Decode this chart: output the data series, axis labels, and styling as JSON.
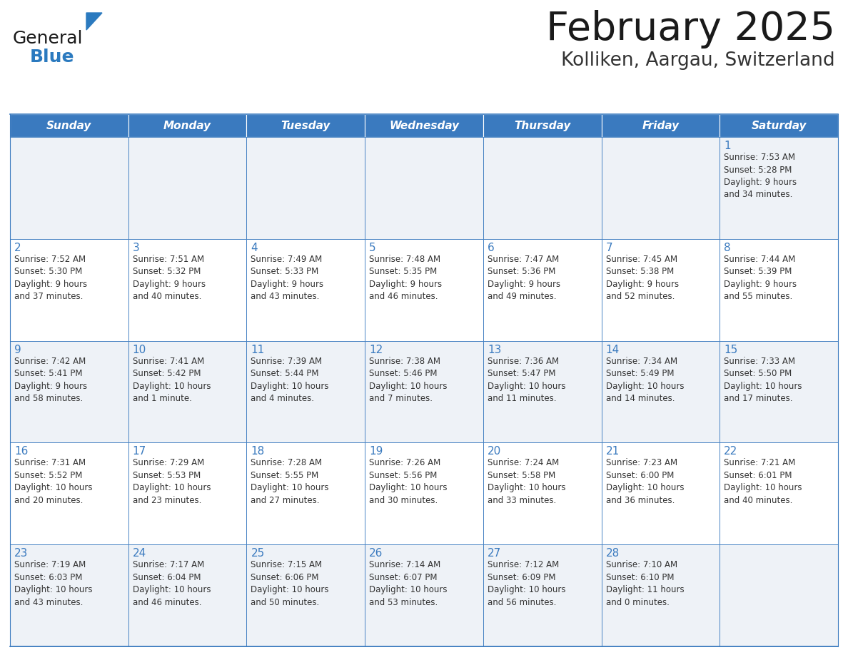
{
  "title": "February 2025",
  "subtitle": "Kolliken, Aargau, Switzerland",
  "header_bg": "#3a7abf",
  "header_text": "#ffffff",
  "cell_bg_even": "#eef2f7",
  "cell_bg_odd": "#ffffff",
  "border_color": "#3a7abf",
  "day_headers": [
    "Sunday",
    "Monday",
    "Tuesday",
    "Wednesday",
    "Thursday",
    "Friday",
    "Saturday"
  ],
  "title_color": "#1a1a1a",
  "subtitle_color": "#333333",
  "date_color": "#3a7abf",
  "text_color": "#333333",
  "logo_general_color": "#1a1a1a",
  "logo_blue_color": "#2b7abf",
  "weeks": [
    [
      {
        "day": null,
        "info": ""
      },
      {
        "day": null,
        "info": ""
      },
      {
        "day": null,
        "info": ""
      },
      {
        "day": null,
        "info": ""
      },
      {
        "day": null,
        "info": ""
      },
      {
        "day": null,
        "info": ""
      },
      {
        "day": 1,
        "info": "Sunrise: 7:53 AM\nSunset: 5:28 PM\nDaylight: 9 hours\nand 34 minutes."
      }
    ],
    [
      {
        "day": 2,
        "info": "Sunrise: 7:52 AM\nSunset: 5:30 PM\nDaylight: 9 hours\nand 37 minutes."
      },
      {
        "day": 3,
        "info": "Sunrise: 7:51 AM\nSunset: 5:32 PM\nDaylight: 9 hours\nand 40 minutes."
      },
      {
        "day": 4,
        "info": "Sunrise: 7:49 AM\nSunset: 5:33 PM\nDaylight: 9 hours\nand 43 minutes."
      },
      {
        "day": 5,
        "info": "Sunrise: 7:48 AM\nSunset: 5:35 PM\nDaylight: 9 hours\nand 46 minutes."
      },
      {
        "day": 6,
        "info": "Sunrise: 7:47 AM\nSunset: 5:36 PM\nDaylight: 9 hours\nand 49 minutes."
      },
      {
        "day": 7,
        "info": "Sunrise: 7:45 AM\nSunset: 5:38 PM\nDaylight: 9 hours\nand 52 minutes."
      },
      {
        "day": 8,
        "info": "Sunrise: 7:44 AM\nSunset: 5:39 PM\nDaylight: 9 hours\nand 55 minutes."
      }
    ],
    [
      {
        "day": 9,
        "info": "Sunrise: 7:42 AM\nSunset: 5:41 PM\nDaylight: 9 hours\nand 58 minutes."
      },
      {
        "day": 10,
        "info": "Sunrise: 7:41 AM\nSunset: 5:42 PM\nDaylight: 10 hours\nand 1 minute."
      },
      {
        "day": 11,
        "info": "Sunrise: 7:39 AM\nSunset: 5:44 PM\nDaylight: 10 hours\nand 4 minutes."
      },
      {
        "day": 12,
        "info": "Sunrise: 7:38 AM\nSunset: 5:46 PM\nDaylight: 10 hours\nand 7 minutes."
      },
      {
        "day": 13,
        "info": "Sunrise: 7:36 AM\nSunset: 5:47 PM\nDaylight: 10 hours\nand 11 minutes."
      },
      {
        "day": 14,
        "info": "Sunrise: 7:34 AM\nSunset: 5:49 PM\nDaylight: 10 hours\nand 14 minutes."
      },
      {
        "day": 15,
        "info": "Sunrise: 7:33 AM\nSunset: 5:50 PM\nDaylight: 10 hours\nand 17 minutes."
      }
    ],
    [
      {
        "day": 16,
        "info": "Sunrise: 7:31 AM\nSunset: 5:52 PM\nDaylight: 10 hours\nand 20 minutes."
      },
      {
        "day": 17,
        "info": "Sunrise: 7:29 AM\nSunset: 5:53 PM\nDaylight: 10 hours\nand 23 minutes."
      },
      {
        "day": 18,
        "info": "Sunrise: 7:28 AM\nSunset: 5:55 PM\nDaylight: 10 hours\nand 27 minutes."
      },
      {
        "day": 19,
        "info": "Sunrise: 7:26 AM\nSunset: 5:56 PM\nDaylight: 10 hours\nand 30 minutes."
      },
      {
        "day": 20,
        "info": "Sunrise: 7:24 AM\nSunset: 5:58 PM\nDaylight: 10 hours\nand 33 minutes."
      },
      {
        "day": 21,
        "info": "Sunrise: 7:23 AM\nSunset: 6:00 PM\nDaylight: 10 hours\nand 36 minutes."
      },
      {
        "day": 22,
        "info": "Sunrise: 7:21 AM\nSunset: 6:01 PM\nDaylight: 10 hours\nand 40 minutes."
      }
    ],
    [
      {
        "day": 23,
        "info": "Sunrise: 7:19 AM\nSunset: 6:03 PM\nDaylight: 10 hours\nand 43 minutes."
      },
      {
        "day": 24,
        "info": "Sunrise: 7:17 AM\nSunset: 6:04 PM\nDaylight: 10 hours\nand 46 minutes."
      },
      {
        "day": 25,
        "info": "Sunrise: 7:15 AM\nSunset: 6:06 PM\nDaylight: 10 hours\nand 50 minutes."
      },
      {
        "day": 26,
        "info": "Sunrise: 7:14 AM\nSunset: 6:07 PM\nDaylight: 10 hours\nand 53 minutes."
      },
      {
        "day": 27,
        "info": "Sunrise: 7:12 AM\nSunset: 6:09 PM\nDaylight: 10 hours\nand 56 minutes."
      },
      {
        "day": 28,
        "info": "Sunrise: 7:10 AM\nSunset: 6:10 PM\nDaylight: 11 hours\nand 0 minutes."
      },
      {
        "day": null,
        "info": ""
      }
    ]
  ]
}
